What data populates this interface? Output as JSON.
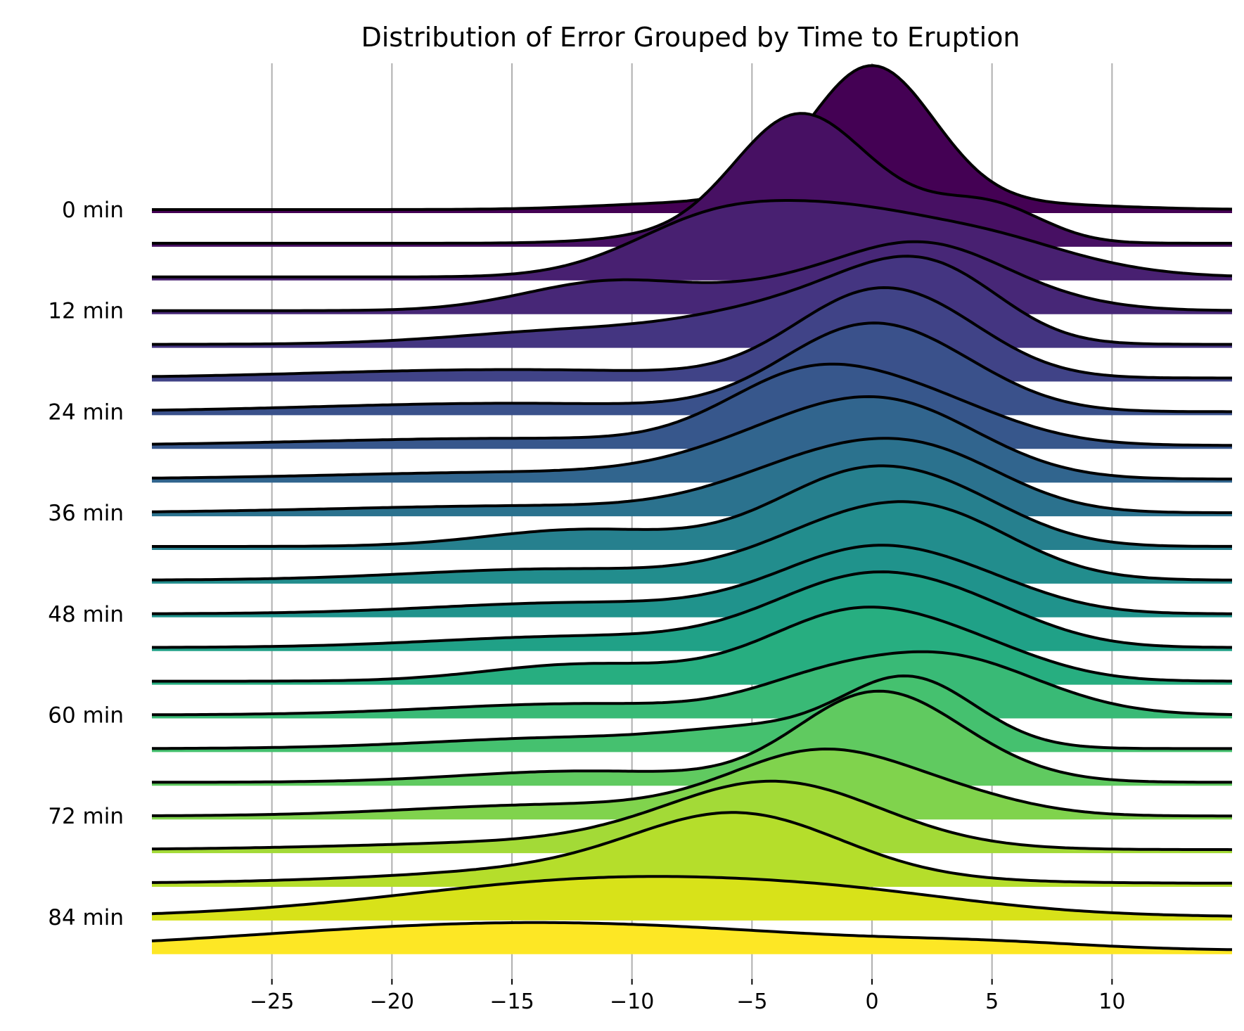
{
  "chart_data": {
    "type": "ridgeline",
    "title": "Distribution of Error Grouped by Time to Eruption",
    "xlabel": "",
    "ylabel": "",
    "xlim": [
      -30,
      15
    ],
    "x_ticks": [
      -25,
      -20,
      -15,
      -10,
      -5,
      0,
      5,
      10
    ],
    "x_tick_labels": [
      "−25",
      "−20",
      "−15",
      "−10",
      "−5",
      "0",
      "5",
      "10"
    ],
    "grid": "vertical",
    "row_labels": [
      "0 min",
      "12 min",
      "24 min",
      "36 min",
      "48 min",
      "60 min",
      "72 min",
      "84 min"
    ],
    "row_label_every": 3,
    "colormap": "viridis",
    "colors": [
      "#440154",
      "#46085c",
      "#471063",
      "#48186a",
      "#482071",
      "#472777",
      "#462e7c",
      "#443581",
      "#423c85",
      "#404387",
      "#3d4a89",
      "#3a518b",
      "#37578c",
      "#345e8d",
      "#31658e",
      "#2e6b8e",
      "#2b728e",
      "#29798e",
      "#26808e",
      "#24868e",
      "#228d8d",
      "#20938c",
      "#1f9a8a",
      "#20a187",
      "#22a784",
      "#27ae80",
      "#2fb47c",
      "#39ba76",
      "#45c16f",
      "#52c569",
      "#60ca60",
      "#70cf57",
      "#80d34d",
      "#92d741",
      "#a3da37",
      "#b5de2b",
      "#c8e020",
      "#d8e219",
      "#e5e419",
      "#fde725"
    ],
    "series": [
      {
        "peaks": [
          [
            0,
            1.0,
            2.6
          ],
          [
            -7,
            0.05,
            4
          ],
          [
            6,
            0.04,
            4
          ]
        ]
      },
      {
        "peaks": [
          [
            -3.2,
            0.85,
            2.6
          ],
          [
            0.8,
            0.2,
            2.5
          ],
          [
            5,
            0.25,
            2.2
          ],
          [
            -8,
            0.05,
            3
          ]
        ]
      },
      {
        "peaks": [
          [
            -6.5,
            0.4,
            3.5
          ],
          [
            -0.5,
            0.38,
            3.5
          ],
          [
            5,
            0.2,
            3
          ],
          [
            9,
            0.05,
            3
          ]
        ]
      },
      {
        "peaks": [
          [
            -11,
            0.2,
            3.5
          ],
          [
            -2,
            0.2,
            4
          ],
          [
            2.5,
            0.36,
            3.2
          ],
          [
            7,
            0.05,
            3
          ]
        ]
      },
      {
        "peaks": [
          [
            -12,
            0.1,
            5
          ],
          [
            -3,
            0.25,
            4
          ],
          [
            1.5,
            0.4,
            3
          ],
          [
            4,
            0.15,
            2.5
          ]
        ]
      },
      {
        "peaks": [
          [
            -15,
            0.06,
            8
          ],
          [
            -1,
            0.4,
            3
          ],
          [
            2.5,
            0.35,
            3
          ]
        ]
      },
      {
        "peaks": [
          [
            -15,
            0.06,
            8
          ],
          [
            -0.5,
            0.55,
            3.4
          ],
          [
            3.5,
            0.15,
            3
          ]
        ]
      },
      {
        "peaks": [
          [
            -15,
            0.05,
            8
          ],
          [
            -3,
            0.42,
            3.3
          ],
          [
            2,
            0.3,
            3.6
          ]
        ]
      },
      {
        "peaks": [
          [
            -14,
            0.05,
            8
          ],
          [
            -3,
            0.3,
            4
          ],
          [
            1.5,
            0.38,
            3.6
          ]
        ]
      },
      {
        "peaks": [
          [
            -14,
            0.05,
            8
          ],
          [
            -1.5,
            0.38,
            4
          ],
          [
            3,
            0.25,
            3.2
          ]
        ]
      },
      {
        "peaks": [
          [
            -12,
            0.12,
            4
          ],
          [
            -0.5,
            0.5,
            3.6
          ],
          [
            4,
            0.18,
            3
          ]
        ]
      },
      {
        "peaks": [
          [
            -13,
            0.08,
            6
          ],
          [
            -1.5,
            0.3,
            3.5
          ],
          [
            3,
            0.38,
            3.4
          ]
        ]
      },
      {
        "peaks": [
          [
            -12,
            0.08,
            6
          ],
          [
            0,
            0.45,
            3.8
          ],
          [
            5,
            0.1,
            3
          ]
        ]
      },
      {
        "peaks": [
          [
            -12,
            0.08,
            6
          ],
          [
            0,
            0.5,
            4
          ],
          [
            5,
            0.1,
            3
          ]
        ]
      },
      {
        "peaks": [
          [
            -12,
            0.12,
            4
          ],
          [
            -0.5,
            0.5,
            3.8
          ],
          [
            5,
            0.12,
            3
          ]
        ]
      },
      {
        "peaks": [
          [
            -12,
            0.08,
            6
          ],
          [
            -2,
            0.22,
            3
          ],
          [
            3,
            0.35,
            3.2
          ],
          [
            7,
            0.08,
            3
          ]
        ]
      },
      {
        "peaks": [
          [
            -12,
            0.08,
            6
          ],
          [
            -5,
            0.1,
            3
          ],
          [
            1.5,
            0.5,
            2.8
          ]
        ]
      },
      {
        "peaks": [
          [
            -12,
            0.08,
            5
          ],
          [
            0,
            0.6,
            3.2
          ],
          [
            4,
            0.1,
            3
          ]
        ]
      },
      {
        "peaks": [
          [
            -13,
            0.08,
            6
          ],
          [
            -2,
            0.45,
            3.8
          ],
          [
            4,
            0.08,
            3
          ]
        ]
      },
      {
        "peaks": [
          [
            -12,
            0.06,
            8
          ],
          [
            -4,
            0.45,
            4.4
          ]
        ]
      },
      {
        "peaks": [
          [
            -10,
            0.12,
            8
          ],
          [
            -5.5,
            0.4,
            4.2
          ]
        ]
      },
      {
        "peaks": [
          [
            -10,
            0.28,
            9
          ],
          [
            0,
            0.05,
            5
          ]
        ]
      },
      {
        "peaks": [
          [
            -14,
            0.2,
            11
          ],
          [
            5,
            0.03,
            4
          ]
        ]
      }
    ]
  }
}
